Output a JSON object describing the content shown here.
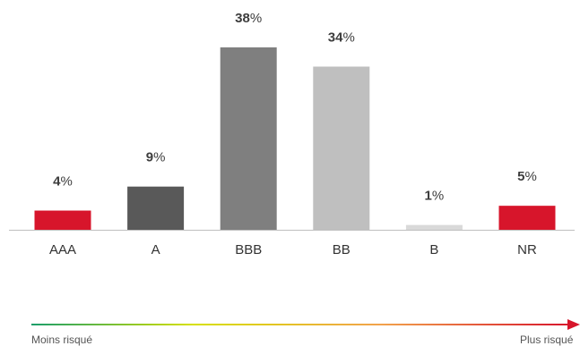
{
  "chart_data": {
    "type": "bar",
    "categories": [
      "AAA",
      "A",
      "BBB",
      "BB",
      "B",
      "NR"
    ],
    "values": [
      4,
      9,
      38,
      34,
      1,
      5
    ],
    "value_suffix": "%",
    "bar_colors": [
      "#d7152b",
      "#595959",
      "#7f7f7f",
      "#bfbfbf",
      "#d9d9d9",
      "#d7152b"
    ],
    "title": "",
    "xlabel": "",
    "ylabel": "",
    "ylim": [
      0,
      38
    ],
    "grid": false,
    "risk_scale": {
      "low_label": "Moins risqué",
      "high_label": "Plus risqué",
      "gradient_colors": [
        "#1a9e6a",
        "#d6e000",
        "#f2a24c",
        "#d7152b"
      ]
    }
  }
}
